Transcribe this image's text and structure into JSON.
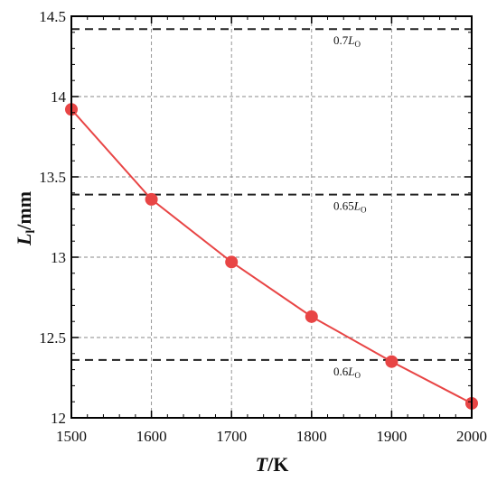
{
  "chart_data": {
    "type": "line",
    "xlabel": {
      "main": "T",
      "unit": "/K"
    },
    "ylabel": {
      "main": "L",
      "sub": "l",
      "unit": "/mm"
    },
    "xlim": [
      1500,
      2000
    ],
    "ylim": [
      12,
      14.5
    ],
    "xticks": [
      1500,
      1600,
      1700,
      1800,
      1900,
      2000
    ],
    "yticks": [
      12,
      12.5,
      13,
      13.5,
      14,
      14.5
    ],
    "xtick_labels": [
      "1500",
      "1600",
      "1700",
      "1800",
      "1900",
      "2000"
    ],
    "ytick_labels": [
      "12",
      "12.5",
      "13",
      "13.5",
      "14",
      "14.5"
    ],
    "grid": true,
    "series": [
      {
        "x": [
          1500,
          1600,
          1700,
          1800,
          1900,
          2000
        ],
        "values": [
          13.92,
          13.36,
          12.97,
          12.63,
          12.35,
          12.09
        ],
        "color": "#e84545",
        "marker": "circle"
      }
    ],
    "reference_lines": [
      {
        "y": 14.42,
        "label_prefix": "0.7",
        "label_var": "L",
        "label_sub": "O"
      },
      {
        "y": 13.39,
        "label_prefix": "0.65",
        "label_var": "L",
        "label_sub": "O"
      },
      {
        "y": 12.36,
        "label_prefix": "0.6",
        "label_var": "L",
        "label_sub": "O"
      }
    ]
  }
}
